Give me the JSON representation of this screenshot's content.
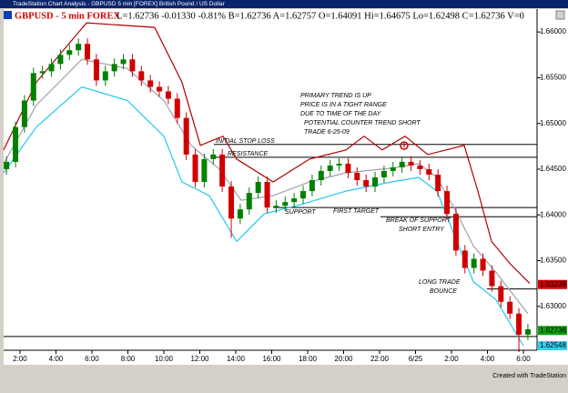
{
  "window_title": "TradeStation Chart Analysis - GBPUSD 5 min [FOREX] British Pound / US Dollar",
  "footer": "Created with TradeStation",
  "chart_data": {
    "type": "candlestick",
    "symbol": "GBPUSD - 5 min  FOREX",
    "quote": "L=1.62736  -0.01330  -0.81%  B=1.62736  A=1.62757  O=1.64091  Hi=1.64675  Lo=1.62498  C=1.62736  V=0",
    "up_color": "#008000",
    "down_color": "#d00000",
    "xlim": [
      1.09,
      30.76
    ],
    "ylim": [
      1.6252,
      1.6625
    ],
    "xticks": [
      {
        "value": 2,
        "label": "2:00"
      },
      {
        "value": 4,
        "label": "4:00"
      },
      {
        "value": 6,
        "label": "6:00"
      },
      {
        "value": 8,
        "label": "8:00"
      },
      {
        "value": 10,
        "label": "10:00"
      },
      {
        "value": 12,
        "label": "12:00"
      },
      {
        "value": 14,
        "label": "14:00"
      },
      {
        "value": 16,
        "label": "16:00"
      },
      {
        "value": 18,
        "label": "18:00"
      },
      {
        "value": 20,
        "label": "20:00"
      },
      {
        "value": 22,
        "label": "22:00"
      },
      {
        "value": 24,
        "label": "6/25"
      },
      {
        "value": 26,
        "label": "2:00"
      },
      {
        "value": 28,
        "label": "4:00"
      },
      {
        "value": 30,
        "label": "6:00"
      }
    ],
    "yticks": [
      {
        "value": 1.63,
        "label": "1.63000"
      },
      {
        "value": 1.635,
        "label": "1.63500"
      },
      {
        "value": 1.64,
        "label": "1.64000"
      },
      {
        "value": 1.645,
        "label": "1.64500"
      },
      {
        "value": 1.65,
        "label": "1.65000"
      },
      {
        "value": 1.655,
        "label": "1.65500"
      },
      {
        "value": 1.66,
        "label": "1.66000"
      }
    ],
    "x": [
      1.25,
      1.75,
      2.25,
      2.75,
      3.25,
      3.75,
      4.25,
      4.75,
      5.25,
      5.75,
      6.25,
      6.75,
      7.25,
      7.75,
      8.25,
      8.75,
      9.25,
      9.75,
      10.25,
      10.75,
      11.25,
      11.75,
      12.25,
      12.75,
      13.25,
      13.75,
      14.25,
      14.75,
      15.25,
      15.75,
      16.25,
      16.75,
      17.25,
      17.75,
      18.25,
      18.75,
      19.25,
      19.75,
      20.25,
      20.75,
      21.25,
      21.75,
      22.25,
      22.75,
      23.25,
      23.75,
      24.25,
      24.75,
      25.25,
      25.75,
      26.25,
      26.75,
      27.25,
      27.75,
      28.25,
      28.75,
      29.25,
      29.75,
      30.25
    ],
    "ohlc": [
      [
        1.645,
        1.6464,
        1.6444,
        1.6458
      ],
      [
        1.6458,
        1.6502,
        1.6452,
        1.6496
      ],
      [
        1.6496,
        1.6531,
        1.649,
        1.6525
      ],
      [
        1.6525,
        1.6561,
        1.6519,
        1.6555
      ],
      [
        1.6555,
        1.6563,
        1.6549,
        1.6557
      ],
      [
        1.6557,
        1.6571,
        1.6551,
        1.6565
      ],
      [
        1.6565,
        1.6581,
        1.6559,
        1.6575
      ],
      [
        1.6575,
        1.6586,
        1.6569,
        1.658
      ],
      [
        1.658,
        1.6593,
        1.6574,
        1.6587
      ],
      [
        1.6587,
        1.6593,
        1.6564,
        1.657
      ],
      [
        1.657,
        1.6576,
        1.6541,
        1.6547
      ],
      [
        1.6547,
        1.6563,
        1.6541,
        1.6557
      ],
      [
        1.6557,
        1.6571,
        1.6551,
        1.6565
      ],
      [
        1.6565,
        1.6576,
        1.6559,
        1.657
      ],
      [
        1.657,
        1.6576,
        1.6551,
        1.6557
      ],
      [
        1.6557,
        1.6563,
        1.6541,
        1.6547
      ],
      [
        1.6547,
        1.6553,
        1.6534,
        1.654
      ],
      [
        1.654,
        1.6546,
        1.6529,
        1.6535
      ],
      [
        1.6535,
        1.6541,
        1.6521,
        1.6527
      ],
      [
        1.6527,
        1.6533,
        1.65,
        1.6506
      ],
      [
        1.6506,
        1.6512,
        1.646,
        1.6466
      ],
      [
        1.6466,
        1.6472,
        1.643,
        1.6436
      ],
      [
        1.6436,
        1.6467,
        1.643,
        1.6461
      ],
      [
        1.6461,
        1.6472,
        1.6455,
        1.6466
      ],
      [
        1.6466,
        1.6472,
        1.6425,
        1.6431
      ],
      [
        1.6431,
        1.6437,
        1.6375,
        1.6396
      ],
      [
        1.6396,
        1.6412,
        1.639,
        1.6406
      ],
      [
        1.6406,
        1.643,
        1.64,
        1.6424
      ],
      [
        1.6424,
        1.6442,
        1.6418,
        1.6436
      ],
      [
        1.6436,
        1.6442,
        1.6402,
        1.6408
      ],
      [
        1.6408,
        1.6416,
        1.6402,
        1.641
      ],
      [
        1.641,
        1.642,
        1.6404,
        1.6414
      ],
      [
        1.6414,
        1.6424,
        1.6408,
        1.6418
      ],
      [
        1.6418,
        1.6432,
        1.6412,
        1.6426
      ],
      [
        1.6426,
        1.6444,
        1.642,
        1.6438
      ],
      [
        1.6438,
        1.6454,
        1.6432,
        1.6448
      ],
      [
        1.6448,
        1.646,
        1.6442,
        1.6454
      ],
      [
        1.6454,
        1.6462,
        1.6448,
        1.6456
      ],
      [
        1.6456,
        1.6462,
        1.644,
        1.6446
      ],
      [
        1.6446,
        1.6452,
        1.6432,
        1.6438
      ],
      [
        1.6438,
        1.6444,
        1.6425,
        1.6431
      ],
      [
        1.6431,
        1.6447,
        1.6425,
        1.6441
      ],
      [
        1.6441,
        1.6454,
        1.6435,
        1.6448
      ],
      [
        1.6448,
        1.6458,
        1.6442,
        1.6452
      ],
      [
        1.6452,
        1.6464,
        1.6446,
        1.6458
      ],
      [
        1.6458,
        1.6464,
        1.6448,
        1.6454
      ],
      [
        1.6454,
        1.646,
        1.6444,
        1.645
      ],
      [
        1.645,
        1.6456,
        1.6438,
        1.6444
      ],
      [
        1.6444,
        1.645,
        1.642,
        1.6426
      ],
      [
        1.6426,
        1.6432,
        1.6395,
        1.6401
      ],
      [
        1.6401,
        1.6407,
        1.6355,
        1.6361
      ],
      [
        1.6361,
        1.6367,
        1.6336,
        1.6342
      ],
      [
        1.6342,
        1.6358,
        1.6336,
        1.6352
      ],
      [
        1.6352,
        1.6358,
        1.6333,
        1.6339
      ],
      [
        1.6339,
        1.6345,
        1.6316,
        1.6322
      ],
      [
        1.6322,
        1.6328,
        1.6299,
        1.6305
      ],
      [
        1.6305,
        1.6311,
        1.6286,
        1.6292
      ],
      [
        1.6292,
        1.6298,
        1.625,
        1.6269
      ],
      [
        1.6269,
        1.6281,
        1.6263,
        1.6275
      ]
    ],
    "bands": [
      {
        "color": "#b00000",
        "x": [
          1.09,
          2.91,
          5.7,
          9.49,
          11.01,
          12.03,
          13.29,
          14.05,
          16.08,
          18.1,
          20.13,
          21.14,
          22.15,
          23.42,
          24.68,
          25.7,
          26.71,
          27.47,
          28.23,
          29.24,
          30.35
        ],
        "values": [
          1.6471,
          1.6545,
          1.661,
          1.6605,
          1.6545,
          1.6476,
          1.6486,
          1.6461,
          1.6436,
          1.6461,
          1.6471,
          1.6486,
          1.6471,
          1.6486,
          1.6466,
          1.6471,
          1.6476,
          1.6426,
          1.6371,
          1.6347,
          1.6325
        ]
      },
      {
        "color": "#a0a0b0",
        "x": [
          1.09,
          2.91,
          5.44,
          7.97,
          10.0,
          11.52,
          13.04,
          14.3,
          16.08,
          18.1,
          20.13,
          22.66,
          24.18,
          25.19,
          26.2,
          27.22,
          28.48,
          30.25
        ],
        "values": [
          1.6456,
          1.652,
          1.657,
          1.656,
          1.6525,
          1.6476,
          1.6451,
          1.6416,
          1.6421,
          1.6436,
          1.6446,
          1.6451,
          1.6456,
          1.6441,
          1.6406,
          1.6366,
          1.6337,
          1.6292
        ]
      },
      {
        "color": "#20c8f0",
        "x": [
          1.09,
          2.91,
          5.44,
          7.97,
          10.0,
          11.01,
          12.53,
          14.05,
          15.57,
          17.59,
          20.13,
          22.66,
          24.18,
          25.19,
          26.2,
          27.22,
          28.48,
          30.0
        ],
        "values": [
          1.6446,
          1.6496,
          1.654,
          1.6525,
          1.6486,
          1.6436,
          1.6421,
          1.6371,
          1.6401,
          1.6411,
          1.6426,
          1.6436,
          1.6441,
          1.6426,
          1.6376,
          1.6327,
          1.6307,
          1.6257
        ]
      }
    ],
    "levels": [
      {
        "price": 1.6477,
        "start": 12.78
      },
      {
        "price": 1.6463,
        "start": 12.78
      },
      {
        "price": 1.6408,
        "start": 16.08
      },
      {
        "price": 1.6398,
        "start": 22.05
      },
      {
        "price": 1.6319,
        "start": 27.97
      },
      {
        "price": 1.6267,
        "start": 1.09
      }
    ],
    "annotations": [
      "PRIMARY TREND IS UP",
      "PRICE IS IN A TIGHT RANGE",
      "DUE TO TIME OF THE DAY",
      "POTENTIAL COUNTER TREND SHORT",
      "TRADE 6-25-09",
      "INITIAL STOP LOSS",
      "RESISTANCE",
      "SUPPORT",
      "FIRST TARGET",
      "BREAK OF SUPPORT",
      "SHORT ENTRY",
      "LONG TRADE",
      "BOUNCE"
    ],
    "price_labels": [
      {
        "value": 1.63239,
        "color": "#d00000"
      },
      {
        "value": 1.62736,
        "color": "#10a010"
      },
      {
        "value": 1.62548,
        "color": "#30d0f0"
      }
    ]
  }
}
